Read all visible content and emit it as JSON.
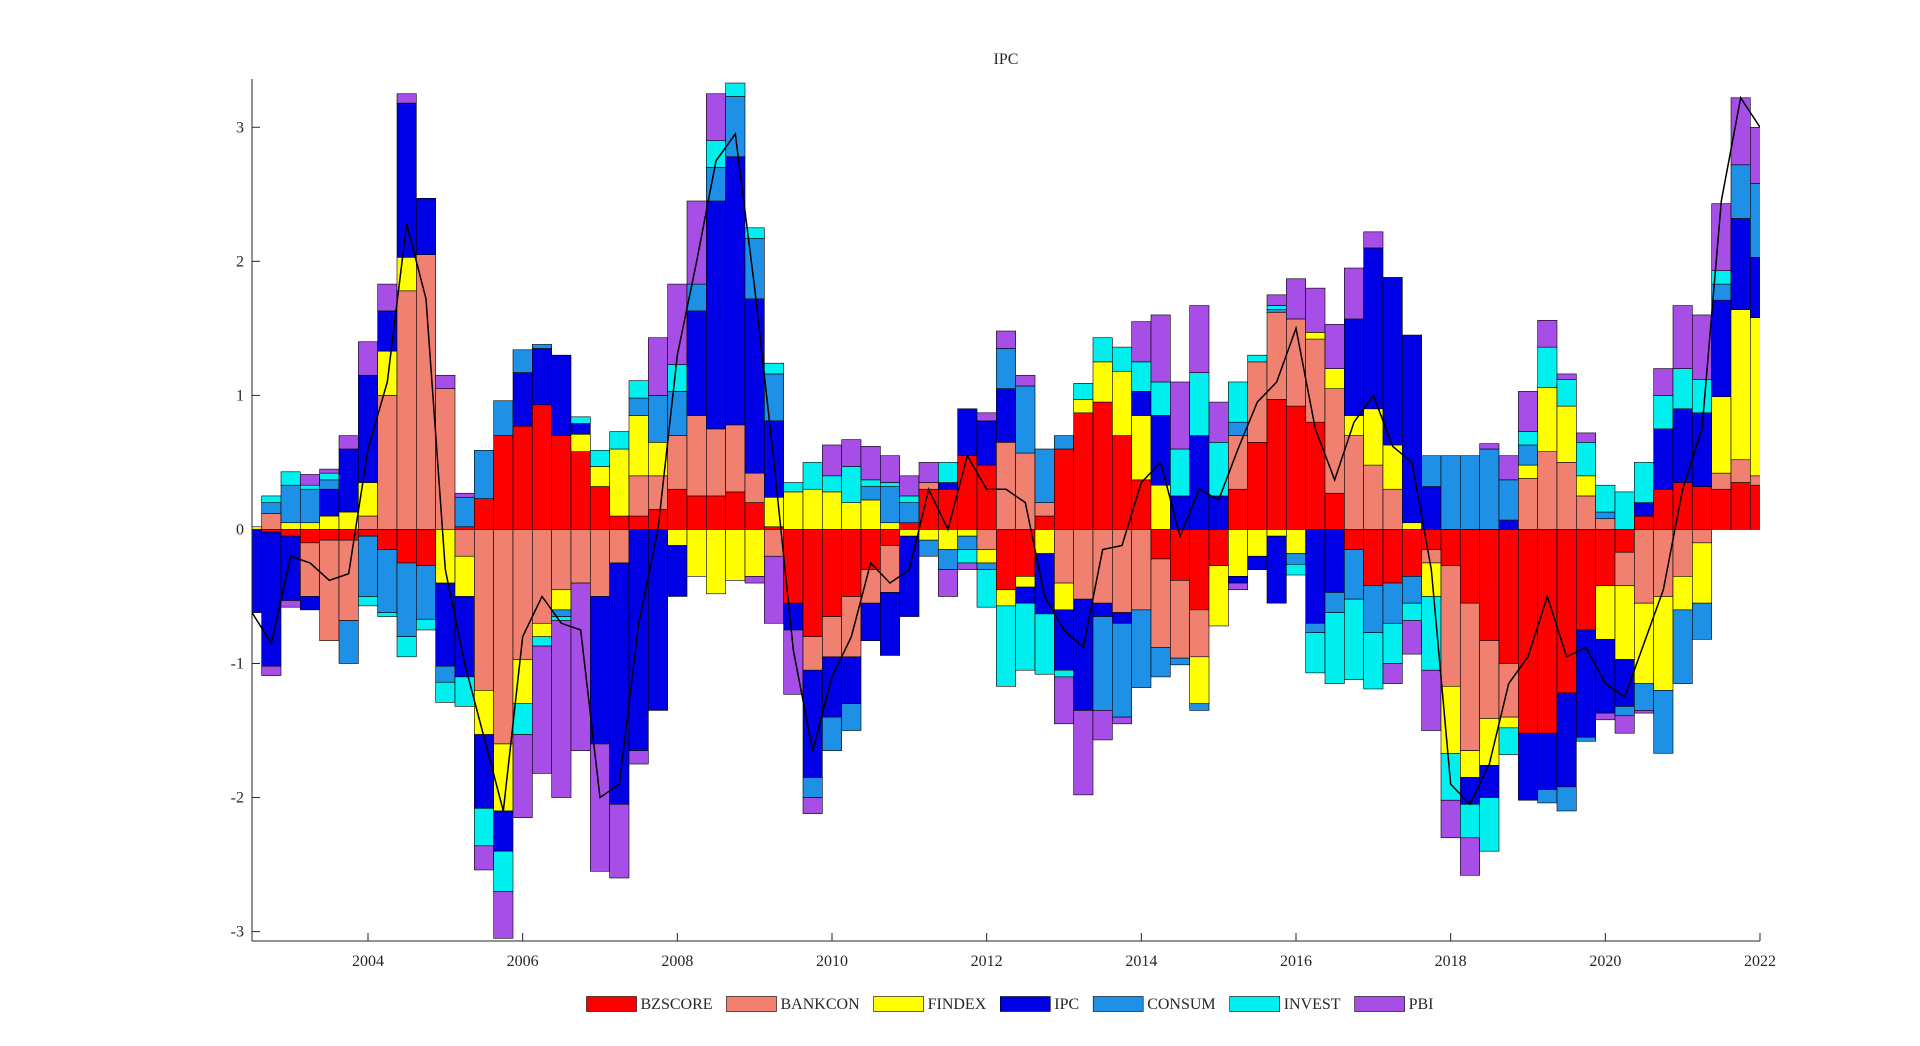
{
  "chart_data": {
    "type": "stacked_bar",
    "title": "IPC",
    "x": [
      2002.5,
      2002.75,
      2003,
      2003.25,
      2003.5,
      2003.75,
      2004,
      2004.25,
      2004.5,
      2004.75,
      2005,
      2005.25,
      2005.5,
      2005.75,
      2006,
      2006.25,
      2006.5,
      2006.75,
      2007,
      2007.25,
      2007.5,
      2007.75,
      2008,
      2008.25,
      2008.5,
      2008.75,
      2009,
      2009.25,
      2009.5,
      2009.75,
      2010,
      2010.25,
      2010.5,
      2010.75,
      2011,
      2011.25,
      2011.5,
      2011.75,
      2012,
      2012.25,
      2012.5,
      2012.75,
      2013,
      2013.25,
      2013.5,
      2013.75,
      2014,
      2014.25,
      2014.5,
      2014.75,
      2015,
      2015.25,
      2015.5,
      2015.75,
      2016,
      2016.25,
      2016.5,
      2016.75,
      2017,
      2017.25,
      2017.5,
      2017.75,
      2018,
      2018.25,
      2018.5,
      2018.75,
      2019,
      2019.25,
      2019.5,
      2019.75,
      2020,
      2020.25,
      2020.5,
      2020.75,
      2021,
      2021.25,
      2021.5,
      2021.75,
      2022
    ],
    "series": [
      {
        "name": "BZSCORE",
        "color": "#ff0000",
        "values": [
          0,
          -0.02,
          -0.05,
          -0.1,
          -0.08,
          -0.08,
          -0.05,
          -0.15,
          -0.25,
          -0.27,
          0,
          0.02,
          0.23,
          0.7,
          0.77,
          0.93,
          0.7,
          0.58,
          0.32,
          0.1,
          0.1,
          0.15,
          0.3,
          0.25,
          0.25,
          0.28,
          0.2,
          0.02,
          -0.55,
          -0.8,
          -0.65,
          -0.5,
          -0.3,
          -0.12,
          0.05,
          0.3,
          0.3,
          0.55,
          0.48,
          -0.45,
          -0.35,
          0.1,
          0.6,
          0.87,
          0.95,
          0.7,
          0.37,
          -0.22,
          -0.38,
          -0.6,
          -0.27,
          0.3,
          0.65,
          0.97,
          0.92,
          0.8,
          0.27,
          -0.15,
          -0.42,
          -0.4,
          -0.35,
          -0.15,
          -0.27,
          -0.55,
          -0.83,
          -1.0,
          -1.52,
          -1.52,
          -1.22,
          -0.75,
          -0.42,
          -0.17,
          0.1,
          0.3,
          0.35,
          0.32,
          0.3,
          0.35,
          0.33
        ]
      },
      {
        "name": "BANKCON",
        "color": "#f08070",
        "values": [
          0,
          0.12,
          0,
          -0.4,
          -0.75,
          -0.6,
          0.1,
          1.0,
          1.78,
          2.05,
          1.05,
          -0.2,
          -1.2,
          -1.6,
          -0.97,
          -0.7,
          -0.45,
          -0.4,
          -0.5,
          -0.25,
          0.3,
          0.25,
          0.4,
          0.6,
          0.5,
          0.5,
          0.22,
          -0.2,
          0,
          -0.25,
          -0.3,
          -0.45,
          -0.25,
          -0.35,
          0,
          0.05,
          0,
          0,
          -0.15,
          0.65,
          0.57,
          0.1,
          -0.4,
          -0.52,
          -0.55,
          -0.62,
          -0.6,
          -0.66,
          -0.58,
          -0.35,
          0,
          0.4,
          0.6,
          0.65,
          0.65,
          0.62,
          0.78,
          0.7,
          0.48,
          0.3,
          0,
          -0.1,
          -0.9,
          -1.1,
          -0.58,
          -0.4,
          0.38,
          0.58,
          0.5,
          0.25,
          0.08,
          -0.25,
          -0.55,
          -0.5,
          -0.35,
          -0.1,
          0.12,
          0.17,
          0.07
        ]
      },
      {
        "name": "FINDEX",
        "color": "#ffff00",
        "values": [
          0.02,
          0,
          0.05,
          0.05,
          0.1,
          0.13,
          0.25,
          0.33,
          0.25,
          0,
          -0.4,
          -0.3,
          -0.33,
          -0.5,
          -0.33,
          -0.1,
          -0.15,
          0.13,
          0.15,
          0.5,
          0.45,
          0.25,
          -0.12,
          -0.35,
          -0.48,
          -0.38,
          -0.35,
          0.22,
          0.28,
          0.3,
          0.28,
          0.2,
          0.22,
          0.05,
          -0.05,
          -0.08,
          -0.15,
          -0.05,
          -0.1,
          -0.12,
          -0.08,
          -0.18,
          -0.2,
          0.1,
          0.3,
          0.48,
          0.48,
          0.33,
          0,
          -0.35,
          -0.45,
          -0.35,
          -0.2,
          -0.05,
          -0.18,
          0.05,
          0.15,
          0.15,
          0.42,
          0.33,
          0.05,
          -0.25,
          -0.5,
          -0.2,
          -0.35,
          -0.08,
          0.1,
          0.48,
          0.42,
          0.15,
          -0.4,
          -0.55,
          -0.6,
          -0.7,
          -0.25,
          -0.45,
          0.57,
          1.12,
          1.18
        ]
      },
      {
        "name": "IPC",
        "color": "#0000e6",
        "values": [
          -0.62,
          -1.0,
          -0.48,
          -0.1,
          0.2,
          0.47,
          0.8,
          0.3,
          1.15,
          0.42,
          -0.62,
          -0.6,
          -0.55,
          -0.3,
          0.4,
          0.42,
          0.6,
          0.08,
          -1.1,
          -1.8,
          -1.65,
          -1.35,
          -0.38,
          0.78,
          1.7,
          2.0,
          1.3,
          0.57,
          -0.2,
          -0.8,
          -0.45,
          -0.35,
          -0.28,
          -0.47,
          -0.6,
          0,
          0.05,
          0.35,
          0.33,
          0.4,
          -0.12,
          -0.45,
          -0.45,
          -0.83,
          -0.1,
          -0.08,
          0.18,
          0.52,
          0.25,
          0.7,
          0.25,
          -0.05,
          -0.1,
          -0.5,
          0,
          -0.7,
          -0.47,
          0.72,
          1.2,
          1.25,
          1.4,
          0.32,
          0,
          -0.2,
          -0.24,
          0.07,
          -0.5,
          -0.42,
          -0.7,
          -0.8,
          -0.55,
          -0.35,
          0.1,
          0.45,
          0.55,
          0.55,
          0.72,
          0.68,
          0.45
        ]
      },
      {
        "name": "CONSUM",
        "color": "#1e90e6",
        "values": [
          0,
          0.08,
          0.28,
          0.25,
          0.07,
          -0.32,
          -0.45,
          -0.47,
          -0.55,
          -0.4,
          -0.12,
          0.22,
          0.36,
          0.26,
          0.17,
          0.03,
          -0.05,
          0,
          0,
          0,
          0.13,
          0.35,
          0.33,
          0.2,
          0.25,
          0.45,
          0.45,
          0.35,
          0,
          -0.15,
          -0.25,
          -0.2,
          0.1,
          0.27,
          0.15,
          -0.12,
          -0.15,
          -0.1,
          -0.05,
          0.3,
          0.5,
          0.4,
          0.1,
          0,
          -0.7,
          -0.7,
          -0.58,
          -0.22,
          -0.05,
          -0.05,
          0,
          0.1,
          0,
          0.02,
          -0.08,
          -0.07,
          -0.15,
          -0.37,
          -0.35,
          -0.3,
          -0.2,
          0.23,
          0.55,
          0.55,
          0.6,
          0.3,
          0.15,
          -0.1,
          -0.18,
          -0.03,
          0.05,
          -0.07,
          -0.2,
          -0.47,
          -0.55,
          -0.27,
          0.12,
          0.4,
          0.55
        ]
      },
      {
        "name": "INVEST",
        "color": "#00f0f0",
        "values": [
          0,
          0.05,
          0.1,
          0.03,
          0.05,
          0,
          -0.07,
          -0.03,
          -0.15,
          -0.08,
          -0.15,
          -0.22,
          -0.28,
          -0.3,
          -0.23,
          -0.07,
          -0.03,
          0.05,
          0.12,
          0.13,
          0.13,
          0,
          0.2,
          0,
          0.2,
          0.1,
          0.08,
          0.08,
          0.07,
          0.2,
          0.12,
          0.27,
          0.05,
          0.03,
          0.05,
          0,
          0.15,
          -0.1,
          -0.28,
          -0.6,
          -0.5,
          -0.45,
          -0.05,
          0.12,
          0.18,
          0.18,
          0.22,
          0.25,
          0.35,
          0.47,
          0.4,
          0.3,
          0.05,
          0.03,
          -0.08,
          -0.3,
          -0.53,
          -0.6,
          -0.42,
          -0.3,
          -0.13,
          -0.55,
          -0.35,
          -0.25,
          -0.4,
          -0.2,
          0.1,
          0.3,
          0.2,
          0.25,
          0.2,
          0.28,
          0.3,
          0.25,
          0.3,
          0.25,
          0.1,
          0,
          0
        ]
      },
      {
        "name": "PBI",
        "color": "#a64ee6",
        "values": [
          0,
          -0.07,
          -0.05,
          0.08,
          0.03,
          0.1,
          0.25,
          0.2,
          0.07,
          0,
          0.1,
          0.03,
          -0.18,
          -0.35,
          -0.62,
          -0.95,
          -1.32,
          -1.25,
          -0.95,
          -0.55,
          -0.1,
          0.43,
          0.6,
          0.62,
          0.35,
          0,
          -0.05,
          -0.5,
          -0.48,
          -0.12,
          0.23,
          0.2,
          0.25,
          0.2,
          0.15,
          0.15,
          -0.2,
          -0.05,
          0.06,
          0.13,
          0.08,
          0,
          -0.35,
          -0.63,
          -0.22,
          -0.05,
          0.3,
          0.5,
          0.5,
          0.5,
          0.3,
          -0.05,
          0,
          0.08,
          0.3,
          0.33,
          0.33,
          0.38,
          0.12,
          -0.15,
          -0.25,
          -0.45,
          -0.28,
          -0.28,
          0.04,
          0.18,
          0.3,
          0.2,
          0.04,
          0.07,
          -0.05,
          -0.13,
          -0.02,
          0.2,
          0.47,
          0.48,
          0.5,
          0.5,
          0.42
        ]
      }
    ],
    "total": {
      "color": "#000000",
      "values": [
        -0.62,
        -0.85,
        -0.2,
        -0.25,
        -0.38,
        -0.33,
        0.6,
        1.1,
        2.28,
        1.72,
        -0.3,
        -1.0,
        -1.55,
        -2.1,
        -0.8,
        -0.5,
        -0.7,
        -0.75,
        -2.0,
        -1.9,
        -0.7,
        0.0,
        1.3,
        2.0,
        2.75,
        2.95,
        1.8,
        0.5,
        -0.9,
        -1.65,
        -1.1,
        -0.8,
        -0.25,
        -0.4,
        -0.3,
        0.3,
        0.0,
        0.55,
        0.3,
        0.3,
        0.2,
        -0.5,
        -0.75,
        -0.88,
        -0.15,
        -0.12,
        0.35,
        0.5,
        -0.05,
        0.3,
        0.22,
        0.6,
        0.95,
        1.1,
        1.5,
        0.75,
        0.37,
        0.8,
        1.0,
        0.62,
        0.5,
        -0.3,
        -1.9,
        -2.05,
        -1.75,
        -1.15,
        -0.95,
        -0.5,
        -0.95,
        -0.88,
        -1.15,
        -1.25,
        -0.85,
        -0.45,
        0.3,
        0.75,
        2.45,
        3.22,
        3.0
      ]
    },
    "bar_width": 0.25,
    "xlim": [
      2002.5,
      2022
    ],
    "xticks": [
      2004,
      2006,
      2008,
      2010,
      2012,
      2014,
      2016,
      2018,
      2020,
      2022
    ],
    "ylim": [
      -3.07,
      3.36
    ],
    "yticks": [
      -3,
      -2,
      -1,
      0,
      1,
      2,
      3
    ],
    "grid": false,
    "legend": "bottom"
  }
}
